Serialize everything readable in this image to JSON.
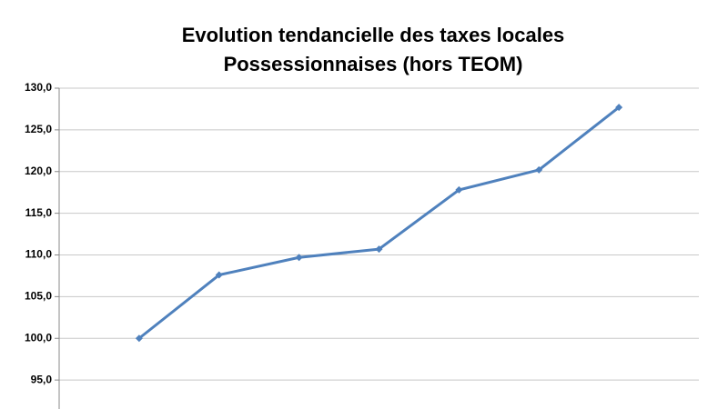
{
  "chart_data": {
    "type": "line",
    "title": [
      "Evolution tendancielle des taxes locales",
      "Possessionnaises (hors TEOM)"
    ],
    "categories": [
      null,
      null,
      null,
      null,
      null,
      null,
      null
    ],
    "series": [
      {
        "name": null,
        "color": "#4f81bd",
        "values": [
          100.0,
          107.6,
          109.7,
          110.7,
          117.8,
          120.2,
          127.7
        ]
      }
    ],
    "ylim": [
      90,
      130
    ],
    "yticks": [
      {
        "value": 95,
        "label": "95,0"
      },
      {
        "value": 100,
        "label": "100,0"
      },
      {
        "value": 105,
        "label": "105,0"
      },
      {
        "value": 110,
        "label": "110,0"
      },
      {
        "value": 115,
        "label": "115,0"
      },
      {
        "value": 120,
        "label": "120,0"
      },
      {
        "value": 125,
        "label": "125,0"
      },
      {
        "value": 130,
        "label": "130,0"
      }
    ],
    "grid": true
  }
}
